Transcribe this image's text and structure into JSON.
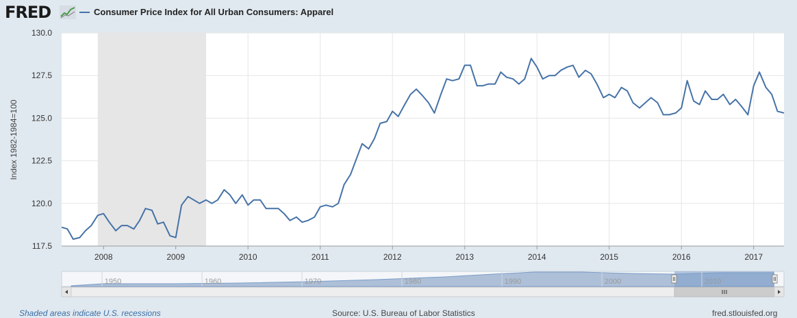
{
  "header": {
    "logo_text": "FRED",
    "legend_label": "Consumer Price Index for All Urban Consumers: Apparel"
  },
  "colors": {
    "series": "#4572a7",
    "recession": "#e6e6e6",
    "navigator": "#7b9cc8"
  },
  "chart_data": {
    "type": "line",
    "title": "Consumer Price Index for All Urban Consumers: Apparel",
    "ylabel": "Index 1982-1984=100",
    "ylim": [
      117.5,
      130.0
    ],
    "yticks": [
      "117.5",
      "120.0",
      "122.5",
      "125.0",
      "127.5",
      "130.0"
    ],
    "xlim": [
      2007.42,
      2017.42
    ],
    "xticks": [
      "2008",
      "2009",
      "2010",
      "2011",
      "2012",
      "2013",
      "2014",
      "2015",
      "2016",
      "2017"
    ],
    "recession": [
      2007.92,
      2009.42
    ],
    "grid": true,
    "series": [
      {
        "name": "Consumer Price Index for All Urban Consumers: Apparel",
        "x": [
          2007.42,
          2007.5,
          2007.58,
          2007.67,
          2007.75,
          2007.83,
          2007.92,
          2008.0,
          2008.08,
          2008.17,
          2008.25,
          2008.33,
          2008.42,
          2008.5,
          2008.58,
          2008.67,
          2008.75,
          2008.83,
          2008.92,
          2009.0,
          2009.08,
          2009.17,
          2009.25,
          2009.33,
          2009.42,
          2009.5,
          2009.58,
          2009.67,
          2009.75,
          2009.83,
          2009.92,
          2010.0,
          2010.08,
          2010.17,
          2010.25,
          2010.33,
          2010.42,
          2010.5,
          2010.58,
          2010.67,
          2010.75,
          2010.83,
          2010.92,
          2011.0,
          2011.08,
          2011.17,
          2011.25,
          2011.33,
          2011.42,
          2011.5,
          2011.58,
          2011.67,
          2011.75,
          2011.83,
          2011.92,
          2012.0,
          2012.08,
          2012.17,
          2012.25,
          2012.33,
          2012.42,
          2012.5,
          2012.58,
          2012.67,
          2012.75,
          2012.83,
          2012.92,
          2013.0,
          2013.08,
          2013.17,
          2013.25,
          2013.33,
          2013.42,
          2013.5,
          2013.58,
          2013.67,
          2013.75,
          2013.83,
          2013.92,
          2014.0,
          2014.08,
          2014.17,
          2014.25,
          2014.33,
          2014.42,
          2014.5,
          2014.58,
          2014.67,
          2014.75,
          2014.83,
          2014.92,
          2015.0,
          2015.08,
          2015.17,
          2015.25,
          2015.33,
          2015.42,
          2015.5,
          2015.58,
          2015.67,
          2015.75,
          2015.83,
          2015.92,
          2016.0,
          2016.08,
          2016.17,
          2016.25,
          2016.33,
          2016.42,
          2016.5,
          2016.58,
          2016.67,
          2016.75,
          2016.83,
          2016.92,
          2017.0,
          2017.08,
          2017.17,
          2017.25,
          2017.33,
          2017.42
        ],
        "y": [
          118.6,
          118.5,
          117.9,
          118.0,
          118.4,
          118.7,
          119.3,
          119.4,
          118.9,
          118.4,
          118.7,
          118.7,
          118.5,
          119.0,
          119.7,
          119.6,
          118.8,
          118.9,
          118.1,
          118.0,
          119.9,
          120.4,
          120.2,
          120.0,
          120.2,
          120.0,
          120.2,
          120.8,
          120.5,
          120.0,
          120.5,
          119.9,
          120.2,
          120.2,
          119.7,
          119.7,
          119.7,
          119.4,
          119.0,
          119.2,
          118.9,
          119.0,
          119.2,
          119.8,
          119.9,
          119.8,
          120.0,
          121.1,
          121.7,
          122.6,
          123.5,
          123.2,
          123.8,
          124.7,
          124.8,
          125.4,
          125.1,
          125.8,
          126.4,
          126.7,
          126.3,
          125.9,
          125.3,
          126.4,
          127.3,
          127.2,
          127.3,
          128.1,
          128.1,
          126.9,
          126.9,
          127.0,
          127.0,
          127.7,
          127.4,
          127.3,
          127.0,
          127.3,
          128.5,
          128.0,
          127.3,
          127.5,
          127.5,
          127.8,
          128.0,
          128.1,
          127.4,
          127.8,
          127.6,
          127.0,
          126.2,
          126.4,
          126.2,
          126.8,
          126.6,
          125.9,
          125.6,
          125.9,
          126.2,
          125.9,
          125.2,
          125.2,
          125.3,
          125.6,
          127.2,
          126.0,
          125.8,
          126.6,
          126.1,
          126.1,
          126.4,
          125.8,
          126.1,
          125.7,
          125.2,
          126.9,
          127.7,
          126.8,
          126.4,
          125.4,
          125.3
        ]
      }
    ],
    "navigator": {
      "xticks": [
        "1950",
        "1960",
        "1970",
        "1980",
        "1990",
        "2000",
        "2010"
      ]
    }
  },
  "footer": {
    "recession_note": "Shaded areas indicate U.S. recessions",
    "source": "Source: U.S. Bureau of Labor Statistics",
    "site": "fred.stlouisfed.org"
  }
}
